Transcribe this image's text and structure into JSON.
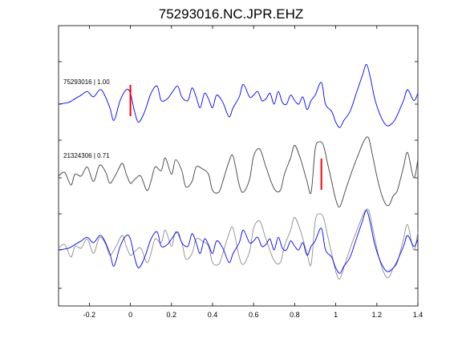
{
  "chart_data": {
    "type": "line",
    "title": "75293016.NC.JPR.EHZ",
    "xlabel": "",
    "ylabel": "",
    "xlim": [
      -0.35,
      1.4
    ],
    "xticks": [
      -0.2,
      0,
      0.2,
      0.4,
      0.6,
      0.8,
      1,
      1.2,
      1.4
    ],
    "xtick_labels": [
      "-0.2",
      "0",
      "0.2",
      "0.4",
      "0.6",
      "0.8",
      "1",
      "1.2",
      "1.4"
    ],
    "grid": false,
    "colors": {
      "blue": "#0000ff",
      "dark_gray": "#404040",
      "light_gray": "#8c8c8c",
      "pick": "#ff0000"
    },
    "traces": [
      {
        "label": "75293016 | 1.00",
        "color": "#0000ff",
        "pick_time": 0.0,
        "x": [
          -0.35,
          -0.3,
          -0.27,
          -0.24,
          -0.21,
          -0.18,
          -0.15,
          -0.13,
          -0.1,
          -0.08,
          -0.05,
          -0.02,
          0,
          0.02,
          0.04,
          0.07,
          0.1,
          0.13,
          0.15,
          0.18,
          0.2,
          0.23,
          0.25,
          0.28,
          0.3,
          0.32,
          0.34,
          0.36,
          0.38,
          0.4,
          0.42,
          0.45,
          0.48,
          0.5,
          0.53,
          0.55,
          0.58,
          0.6,
          0.62,
          0.64,
          0.66,
          0.68,
          0.7,
          0.72,
          0.74,
          0.76,
          0.78,
          0.8,
          0.82,
          0.84,
          0.86,
          0.88,
          0.9,
          0.93,
          0.95,
          0.98,
          1.0,
          1.02,
          1.04,
          1.07,
          1.1,
          1.13,
          1.15,
          1.17,
          1.19,
          1.22,
          1.25,
          1.28,
          1.3,
          1.33,
          1.35,
          1.38,
          1.4
        ],
        "y": [
          0.0,
          0.05,
          0.15,
          0.25,
          0.35,
          0.2,
          0.4,
          0.3,
          -0.1,
          -0.45,
          0.1,
          0.4,
          0.3,
          -0.2,
          -0.5,
          -0.2,
          0.3,
          0.5,
          0.1,
          0.15,
          0.3,
          0.5,
          0.2,
          0.1,
          0.45,
          0.2,
          -0.1,
          0.3,
          0.15,
          -0.1,
          0.25,
          0.05,
          -0.35,
          -0.1,
          0.2,
          0.55,
          0.2,
          0.25,
          0.35,
          0.1,
          0.15,
          0.3,
          0.0,
          0.35,
          0.05,
          0.0,
          0.25,
          0.1,
          0.0,
          0.2,
          -0.15,
          0.1,
          0.25,
          0.6,
          0.0,
          -0.2,
          -0.5,
          -0.65,
          -0.45,
          -0.2,
          0.3,
          0.8,
          1.1,
          0.7,
          0.15,
          -0.35,
          -0.6,
          -0.5,
          -0.3,
          0.1,
          0.4,
          0.1,
          0.3
        ]
      },
      {
        "label": "21324306 | 0.71",
        "color": "#404040",
        "pick_time": 0.93,
        "x": [
          -0.35,
          -0.32,
          -0.29,
          -0.27,
          -0.24,
          -0.21,
          -0.18,
          -0.15,
          -0.12,
          -0.1,
          -0.07,
          -0.04,
          -0.02,
          0.0,
          0.02,
          0.05,
          0.08,
          0.1,
          0.12,
          0.15,
          0.17,
          0.2,
          0.22,
          0.25,
          0.27,
          0.3,
          0.32,
          0.35,
          0.38,
          0.4,
          0.43,
          0.45,
          0.48,
          0.5,
          0.53,
          0.55,
          0.58,
          0.6,
          0.63,
          0.66,
          0.7,
          0.73,
          0.75,
          0.78,
          0.8,
          0.83,
          0.86,
          0.88,
          0.9,
          0.92,
          0.94,
          0.96,
          0.98,
          1.0,
          1.02,
          1.05,
          1.08,
          1.11,
          1.14,
          1.16,
          1.18,
          1.21,
          1.24,
          1.26,
          1.28,
          1.3,
          1.33,
          1.35,
          1.38,
          1.4
        ],
        "y": [
          0.05,
          0.15,
          -0.2,
          0.1,
          0.05,
          0.3,
          -0.1,
          0.35,
          0.15,
          -0.15,
          0.1,
          0.4,
          0.1,
          -0.15,
          -0.05,
          0.05,
          -0.35,
          -0.1,
          0.3,
          0.2,
          0.55,
          0.1,
          0.5,
          0.2,
          -0.25,
          -0.1,
          0.3,
          0.25,
          0.1,
          -0.35,
          -0.4,
          -0.1,
          0.45,
          0.6,
          -0.2,
          -0.4,
          -0.05,
          0.6,
          0.8,
          0.3,
          -0.3,
          -0.35,
          0.1,
          0.55,
          0.9,
          0.5,
          -0.1,
          -0.4,
          0.8,
          1.0,
          0.9,
          0.4,
          -0.1,
          -0.6,
          -0.8,
          -0.3,
          0.2,
          0.65,
          1.05,
          1.1,
          0.6,
          -0.2,
          -0.7,
          -0.75,
          -0.5,
          -0.35,
          0.3,
          0.7,
          0.0,
          0.5
        ]
      }
    ],
    "overlay": {
      "series": [
        {
          "name": "",
          "color": "#0000ff",
          "from_trace": 0
        },
        {
          "name": "",
          "color": "#8c8c8c",
          "from_trace": 1
        }
      ]
    }
  }
}
